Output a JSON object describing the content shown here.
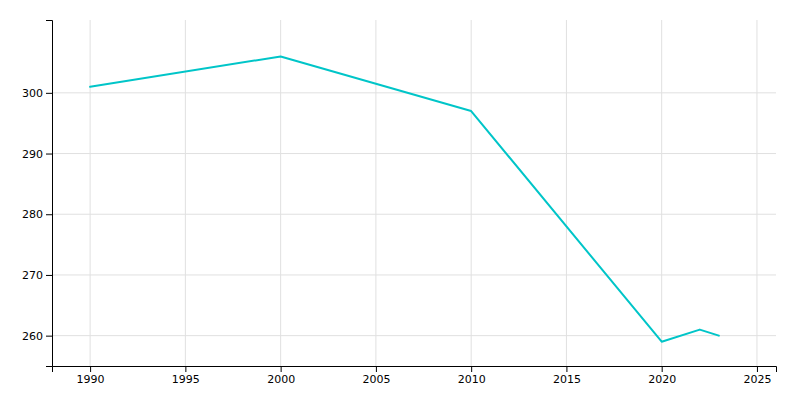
{
  "chart_data": {
    "type": "line",
    "x": [
      1990,
      2000,
      2010,
      2020,
      2022,
      2023
    ],
    "values": [
      301,
      306,
      297,
      259,
      261,
      260
    ],
    "color": "#00C5C8",
    "xlim": [
      1988,
      2026
    ],
    "ylim": [
      255,
      312
    ],
    "xticks": [
      1990,
      1995,
      2000,
      2005,
      2010,
      2015,
      2020,
      2025
    ],
    "yticks": [
      260,
      270,
      280,
      290,
      300
    ],
    "grid": true
  }
}
